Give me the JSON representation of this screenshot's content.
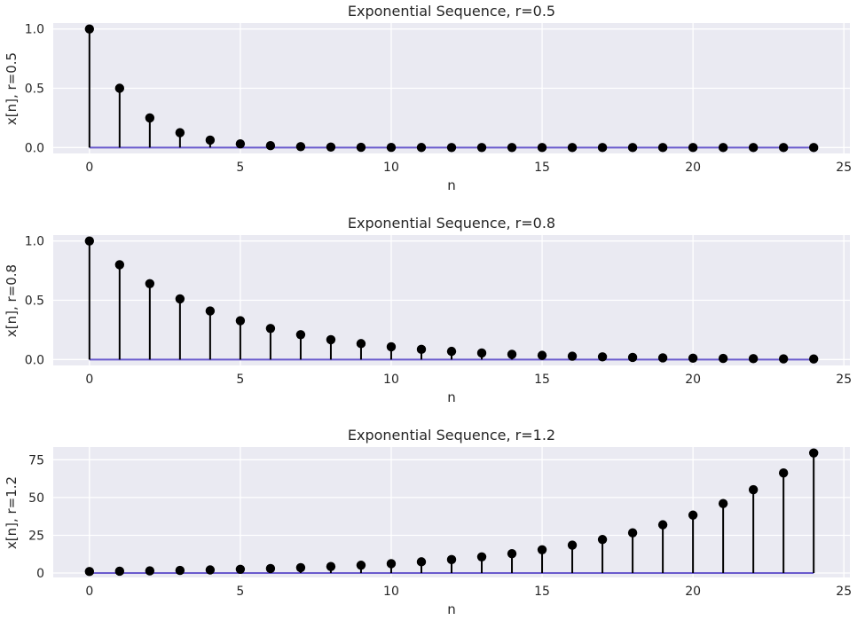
{
  "style": {
    "figure_background": "#ffffff",
    "axes_background": "#eaeaf2",
    "grid_color": "#ffffff",
    "stem_color": "#000000",
    "marker_color": "#000000",
    "baseline_color": "#6a5acd",
    "text_color": "#262626",
    "tick_color": "#262626"
  },
  "chart_data": [
    {
      "type": "stem",
      "title": "Exponential Sequence, r=0.5",
      "xlabel": "n",
      "ylabel": "x[n], r=0.5",
      "x": [
        0,
        1,
        2,
        3,
        4,
        5,
        6,
        7,
        8,
        9,
        10,
        11,
        12,
        13,
        14,
        15,
        16,
        17,
        18,
        19,
        20,
        21,
        22,
        23,
        24
      ],
      "values": [
        1,
        0.5,
        0.25,
        0.125,
        0.0625,
        0.03125,
        0.015625,
        0.0078125,
        0.0039063,
        0.0019531,
        0.0009766,
        0.0004883,
        0.0002441,
        0.0001221,
        6.1e-05,
        3.05e-05,
        1.53e-05,
        7.6e-06,
        3.8e-06,
        1.9e-06,
        1e-06,
        5e-07,
        2e-07,
        1e-07,
        1e-07
      ],
      "baseline": 0,
      "xlim": [
        -1.2,
        25.2
      ],
      "ylim": [
        -0.05,
        1.05
      ],
      "grid": true,
      "xticks": {
        "values": [
          0,
          5,
          10,
          15,
          20,
          25
        ],
        "labels": [
          "0",
          "5",
          "10",
          "15",
          "20",
          "25"
        ]
      },
      "yticks": {
        "values": [
          0,
          0.5,
          1.0
        ],
        "labels": [
          "0.0",
          "0.5",
          "1.0"
        ]
      }
    },
    {
      "type": "stem",
      "title": "Exponential Sequence, r=0.8",
      "xlabel": "n",
      "ylabel": "x[n], r=0.8",
      "x": [
        0,
        1,
        2,
        3,
        4,
        5,
        6,
        7,
        8,
        9,
        10,
        11,
        12,
        13,
        14,
        15,
        16,
        17,
        18,
        19,
        20,
        21,
        22,
        23,
        24
      ],
      "values": [
        1,
        0.8,
        0.64,
        0.512,
        0.4096,
        0.32768,
        0.262144,
        0.209715,
        0.167772,
        0.134218,
        0.107374,
        0.085899,
        0.068719,
        0.054976,
        0.04398,
        0.035184,
        0.028147,
        0.022518,
        0.018014,
        0.014412,
        0.011529,
        0.009223,
        0.007379,
        0.005903,
        0.004722
      ],
      "baseline": 0,
      "xlim": [
        -1.2,
        25.2
      ],
      "ylim": [
        -0.05,
        1.05
      ],
      "grid": true,
      "xticks": {
        "values": [
          0,
          5,
          10,
          15,
          20,
          25
        ],
        "labels": [
          "0",
          "5",
          "10",
          "15",
          "20",
          "25"
        ]
      },
      "yticks": {
        "values": [
          0,
          0.5,
          1.0
        ],
        "labels": [
          "0.0",
          "0.5",
          "1.0"
        ]
      }
    },
    {
      "type": "stem",
      "title": "Exponential Sequence, r=1.2",
      "xlabel": "n",
      "ylabel": "x[n], r=1.2",
      "x": [
        0,
        1,
        2,
        3,
        4,
        5,
        6,
        7,
        8,
        9,
        10,
        11,
        12,
        13,
        14,
        15,
        16,
        17,
        18,
        19,
        20,
        21,
        22,
        23,
        24
      ],
      "values": [
        1,
        1.2,
        1.44,
        1.728,
        2.0736,
        2.4883,
        2.986,
        3.5832,
        4.2998,
        5.1598,
        6.1917,
        7.4301,
        8.9161,
        10.6993,
        12.8392,
        15.407,
        18.4884,
        22.1861,
        26.6233,
        31.948,
        38.3376,
        46.0051,
        55.2061,
        66.2474,
        79.4968
      ],
      "baseline": 0,
      "xlim": [
        -1.2,
        25.2
      ],
      "ylim": [
        -2.92,
        83.42
      ],
      "grid": true,
      "xticks": {
        "values": [
          0,
          5,
          10,
          15,
          20,
          25
        ],
        "labels": [
          "0",
          "5",
          "10",
          "15",
          "20",
          "25"
        ]
      },
      "yticks": {
        "values": [
          0,
          25,
          50,
          75
        ],
        "labels": [
          "0",
          "25",
          "50",
          "75"
        ]
      }
    }
  ]
}
